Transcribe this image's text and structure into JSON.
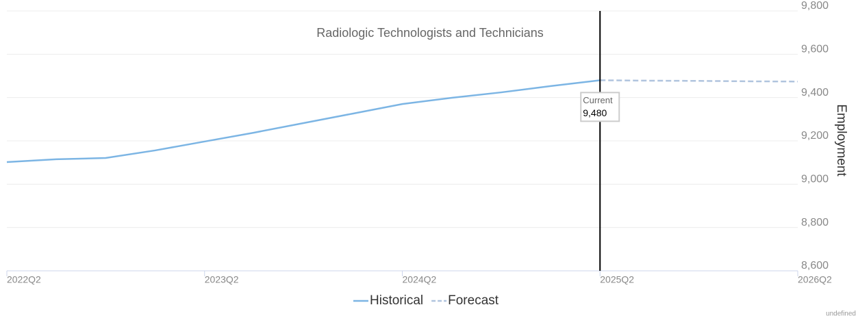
{
  "chart_data": {
    "type": "line",
    "title": "Radiologic Technologists and Technicians",
    "y_axis_label": "Employment",
    "categories": [
      "2022Q2",
      null,
      null,
      null,
      "2023Q2",
      null,
      null,
      null,
      "2024Q2",
      null,
      null,
      null,
      "2025Q2",
      null,
      null,
      null,
      "2026Q2"
    ],
    "series": [
      {
        "name": "Historical",
        "color": "#7cb5e4",
        "dashed": false,
        "values": [
          9102,
          9115,
          9121,
          9156,
          9197,
          9238,
          9282,
          9326,
          9370,
          9399,
          9424,
          9453,
          9480,
          null,
          null,
          null,
          null
        ]
      },
      {
        "name": "Forecast",
        "color": "#b0c4de",
        "dashed": true,
        "values": [
          null,
          null,
          null,
          null,
          null,
          null,
          null,
          null,
          null,
          null,
          null,
          null,
          9480,
          9478,
          9477,
          9475,
          9474
        ]
      }
    ],
    "ylim": [
      8600,
      9800
    ],
    "yticks": [
      {
        "value": 8600,
        "label": "8,600"
      },
      {
        "value": 8800,
        "label": "8,800"
      },
      {
        "value": 9000,
        "label": "9,000"
      },
      {
        "value": 9200,
        "label": "9,200"
      },
      {
        "value": 9400,
        "label": "9,400"
      },
      {
        "value": 9600,
        "label": "9,600"
      },
      {
        "value": 9800,
        "label": "9,800"
      }
    ],
    "grid": true,
    "annotation": {
      "x": "2025Q2",
      "text": "Current",
      "value": 9480,
      "value_label": "9,480"
    },
    "legend": "bottom"
  },
  "footer": "undefined"
}
